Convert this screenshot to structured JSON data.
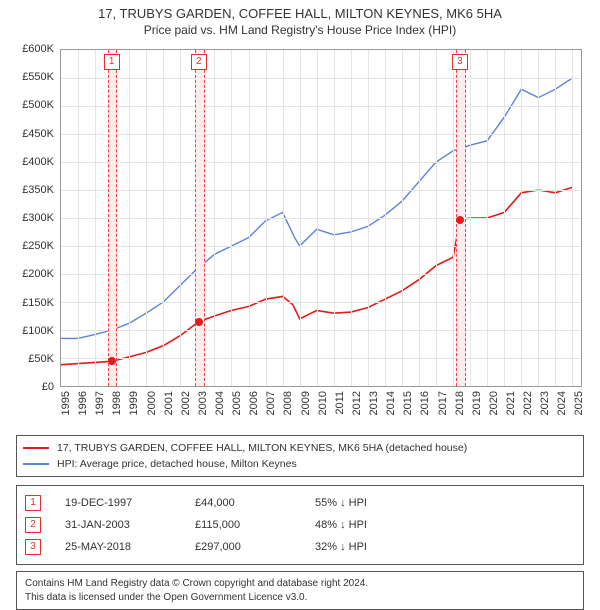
{
  "title_line1": "17, TRUBYS GARDEN, COFFEE HALL, MILTON KEYNES, MK6 5HA",
  "title_line2": "Price paid vs. HM Land Registry's House Price Index (HPI)",
  "chart": {
    "type": "line",
    "background_color": "#ffffff",
    "grid_color": "#e4e4e4",
    "axis_color": "#999999",
    "label_color": "#333333",
    "label_fontsize": 11,
    "x": {
      "min": 1995,
      "max": 2025.5,
      "ticks": [
        1995,
        1996,
        1997,
        1998,
        1999,
        2000,
        2001,
        2002,
        2003,
        2004,
        2005,
        2006,
        2007,
        2008,
        2009,
        2010,
        2011,
        2012,
        2013,
        2014,
        2015,
        2016,
        2017,
        2018,
        2019,
        2020,
        2021,
        2022,
        2023,
        2024,
        2025
      ]
    },
    "y": {
      "min": 0,
      "max": 600000,
      "ticks": [
        0,
        50000,
        100000,
        150000,
        200000,
        250000,
        300000,
        350000,
        400000,
        450000,
        500000,
        550000,
        600000
      ],
      "tick_labels": [
        "£0",
        "£50K",
        "£100K",
        "£150K",
        "£200K",
        "£250K",
        "£300K",
        "£350K",
        "£400K",
        "£450K",
        "£500K",
        "£550K",
        "£600K"
      ]
    },
    "highlight_bands": {
      "fill": "#ffecec",
      "stroke": "#ff3b3b",
      "half_width_years": 0.22,
      "events": [
        {
          "badge": "1",
          "year": 1997.97,
          "price": 44000
        },
        {
          "badge": "2",
          "year": 2003.08,
          "price": 115000
        },
        {
          "badge": "3",
          "year": 2018.4,
          "price": 297000
        }
      ]
    },
    "series": [
      {
        "name": "price_paid",
        "color": "#e11b1b",
        "line_width": 1.6,
        "points": [
          [
            1995,
            38000
          ],
          [
            1996,
            40000
          ],
          [
            1997,
            42000
          ],
          [
            1997.97,
            44000
          ],
          [
            1999,
            52000
          ],
          [
            2000,
            60000
          ],
          [
            2001,
            72000
          ],
          [
            2002,
            90000
          ],
          [
            2003.08,
            115000
          ],
          [
            2004,
            125000
          ],
          [
            2005,
            135000
          ],
          [
            2006,
            142000
          ],
          [
            2007,
            155000
          ],
          [
            2008,
            160000
          ],
          [
            2008.6,
            145000
          ],
          [
            2009,
            120000
          ],
          [
            2010,
            135000
          ],
          [
            2011,
            130000
          ],
          [
            2012,
            132000
          ],
          [
            2013,
            140000
          ],
          [
            2014,
            155000
          ],
          [
            2015,
            170000
          ],
          [
            2016,
            190000
          ],
          [
            2017,
            215000
          ],
          [
            2018,
            230000
          ],
          [
            2018.4,
            297000
          ],
          [
            2019,
            300000
          ],
          [
            2020,
            300000
          ],
          [
            2021,
            310000
          ],
          [
            2022,
            345000
          ],
          [
            2023,
            350000
          ],
          [
            2024,
            345000
          ],
          [
            2025,
            355000
          ]
        ]
      },
      {
        "name": "hpi",
        "color": "#5b83d6",
        "line_width": 1.4,
        "points": [
          [
            1995,
            85000
          ],
          [
            1996,
            85000
          ],
          [
            1997,
            92000
          ],
          [
            1998,
            100000
          ],
          [
            1999,
            112000
          ],
          [
            2000,
            130000
          ],
          [
            2001,
            150000
          ],
          [
            2002,
            180000
          ],
          [
            2003,
            210000
          ],
          [
            2004,
            235000
          ],
          [
            2005,
            250000
          ],
          [
            2006,
            265000
          ],
          [
            2007,
            295000
          ],
          [
            2008,
            310000
          ],
          [
            2008.7,
            265000
          ],
          [
            2009,
            250000
          ],
          [
            2010,
            280000
          ],
          [
            2011,
            270000
          ],
          [
            2012,
            275000
          ],
          [
            2013,
            285000
          ],
          [
            2014,
            305000
          ],
          [
            2015,
            330000
          ],
          [
            2016,
            365000
          ],
          [
            2017,
            400000
          ],
          [
            2018,
            420000
          ],
          [
            2019,
            430000
          ],
          [
            2020,
            438000
          ],
          [
            2021,
            480000
          ],
          [
            2022,
            530000
          ],
          [
            2023,
            515000
          ],
          [
            2024,
            530000
          ],
          [
            2025,
            550000
          ]
        ]
      }
    ],
    "markers": {
      "color": "#e11b1b",
      "radius": 4,
      "points": [
        {
          "year": 1997.97,
          "value": 44000
        },
        {
          "year": 2003.08,
          "value": 115000
        },
        {
          "year": 2018.4,
          "value": 297000
        }
      ]
    }
  },
  "legend": {
    "items": [
      {
        "color": "#e11b1b",
        "label": "17, TRUBYS GARDEN, COFFEE HALL, MILTON KEYNES, MK6 5HA (detached house)"
      },
      {
        "color": "#5b83d6",
        "label": "HPI: Average price, detached house, Milton Keynes"
      }
    ]
  },
  "events_table": [
    {
      "badge": "1",
      "date": "19-DEC-1997",
      "price": "£44,000",
      "hpi": "55% ↓ HPI"
    },
    {
      "badge": "2",
      "date": "31-JAN-2003",
      "price": "£115,000",
      "hpi": "48% ↓ HPI"
    },
    {
      "badge": "3",
      "date": "25-MAY-2018",
      "price": "£297,000",
      "hpi": "32% ↓ HPI"
    }
  ],
  "footer_line1": "Contains HM Land Registry data © Crown copyright and database right 2024.",
  "footer_line2": "This data is licensed under the Open Government Licence v3.0."
}
